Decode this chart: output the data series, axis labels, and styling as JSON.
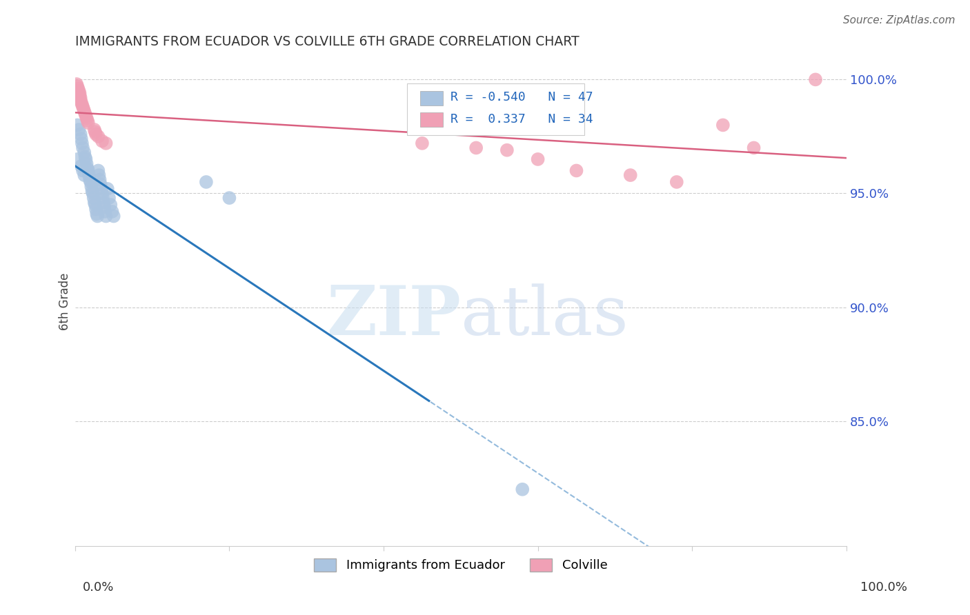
{
  "title": "IMMIGRANTS FROM ECUADOR VS COLVILLE 6TH GRADE CORRELATION CHART",
  "source": "Source: ZipAtlas.com",
  "ylabel": "6th Grade",
  "ytick_labels": [
    "100.0%",
    "95.0%",
    "90.0%",
    "85.0%"
  ],
  "ytick_positions": [
    1.0,
    0.95,
    0.9,
    0.85
  ],
  "legend_blue_label": "Immigrants from Ecuador",
  "legend_pink_label": "Colville",
  "blue_R": -0.54,
  "blue_N": 47,
  "pink_R": 0.337,
  "pink_N": 34,
  "blue_color": "#aac4e0",
  "blue_line_color": "#2977bb",
  "pink_color": "#f0a0b5",
  "pink_line_color": "#d96080",
  "watermark_zip": "ZIP",
  "watermark_atlas": "atlas",
  "xlim": [
    0.0,
    1.0
  ],
  "ylim": [
    0.795,
    1.01
  ],
  "blue_x": [
    0.003,
    0.005,
    0.007,
    0.008,
    0.009,
    0.01,
    0.012,
    0.013,
    0.014,
    0.015,
    0.016,
    0.017,
    0.018,
    0.019,
    0.02,
    0.021,
    0.022,
    0.023,
    0.024,
    0.025,
    0.026,
    0.027,
    0.028,
    0.029,
    0.03,
    0.031,
    0.032,
    0.033,
    0.034,
    0.035,
    0.036,
    0.037,
    0.038,
    0.039,
    0.04,
    0.042,
    0.044,
    0.046,
    0.048,
    0.05,
    0.003,
    0.008,
    0.01,
    0.012,
    0.17,
    0.2,
    0.58
  ],
  "blue_y": [
    0.98,
    0.978,
    0.976,
    0.974,
    0.972,
    0.97,
    0.968,
    0.966,
    0.965,
    0.963,
    0.961,
    0.96,
    0.958,
    0.956,
    0.955,
    0.953,
    0.951,
    0.95,
    0.948,
    0.946,
    0.945,
    0.943,
    0.941,
    0.94,
    0.96,
    0.958,
    0.956,
    0.954,
    0.952,
    0.95,
    0.948,
    0.946,
    0.944,
    0.942,
    0.94,
    0.952,
    0.948,
    0.945,
    0.942,
    0.94,
    0.965,
    0.962,
    0.96,
    0.958,
    0.955,
    0.948,
    0.82
  ],
  "pink_x": [
    0.002,
    0.003,
    0.004,
    0.005,
    0.006,
    0.006,
    0.007,
    0.007,
    0.008,
    0.009,
    0.01,
    0.011,
    0.012,
    0.013,
    0.014,
    0.015,
    0.016,
    0.017,
    0.025,
    0.026,
    0.027,
    0.03,
    0.035,
    0.04,
    0.45,
    0.52,
    0.56,
    0.6,
    0.65,
    0.72,
    0.78,
    0.84,
    0.88,
    0.96
  ],
  "pink_y": [
    0.998,
    0.997,
    0.996,
    0.995,
    0.994,
    0.993,
    0.992,
    0.991,
    0.99,
    0.989,
    0.988,
    0.987,
    0.986,
    0.985,
    0.984,
    0.983,
    0.982,
    0.981,
    0.978,
    0.977,
    0.976,
    0.975,
    0.973,
    0.972,
    0.972,
    0.97,
    0.969,
    0.965,
    0.96,
    0.958,
    0.955,
    0.98,
    0.97,
    1.0
  ]
}
